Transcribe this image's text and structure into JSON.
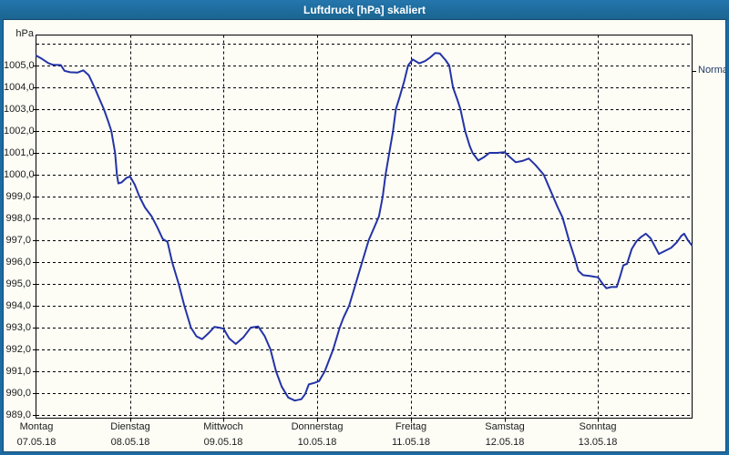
{
  "window": {
    "title": "Luftdruck [hPa] skaliert"
  },
  "colors": {
    "titlebar": "#1d6ba3",
    "window_border": "#1d6ba3",
    "inner_outline": "#16486d",
    "plot_background": "#fdfdf6",
    "grid": "#000000",
    "line": "#2433a6",
    "axis_text": "#1c1c1c",
    "normal_text": "#1f3864"
  },
  "chart_data": {
    "type": "line",
    "title": "Luftdruck [hPa] skaliert",
    "unit_label": "hPa",
    "grid": "dashed",
    "legend_position": "none",
    "y_axis": {
      "min": 989,
      "max": 1006,
      "step": 1,
      "tick_labels": [
        "1005,0",
        "1004,0",
        "1003,0",
        "1002,0",
        "1001,0",
        "1000,0",
        "999,0",
        "998,0",
        "997,0",
        "996,0",
        "995,0",
        "994,0",
        "993,0",
        "992,0",
        "991,0",
        "990,0",
        "989,0"
      ]
    },
    "x_axis": {
      "span_days": 7,
      "days": [
        {
          "name": "Montag",
          "date": "07.05.18"
        },
        {
          "name": "Dienstag",
          "date": "08.05.18"
        },
        {
          "name": "Mittwoch",
          "date": "09.05.18"
        },
        {
          "name": "Donnerstag",
          "date": "10.05.18"
        },
        {
          "name": "Freitag",
          "date": "11.05.18"
        },
        {
          "name": "Samstag",
          "date": "12.05.18"
        },
        {
          "name": "Sonntag",
          "date": "13.05.18"
        }
      ]
    },
    "annotations": [
      {
        "label": "Normal",
        "value_hpa": 1004.75,
        "side": "right"
      }
    ],
    "series": [
      {
        "name": "Luftdruck",
        "unit": "hPa",
        "points_days_hpa": [
          [
            0.0,
            1005.45
          ],
          [
            0.06,
            1005.3
          ],
          [
            0.13,
            1005.1
          ],
          [
            0.18,
            1005.03
          ],
          [
            0.26,
            1005.02
          ],
          [
            0.3,
            1004.76
          ],
          [
            0.36,
            1004.69
          ],
          [
            0.44,
            1004.68
          ],
          [
            0.5,
            1004.78
          ],
          [
            0.56,
            1004.55
          ],
          [
            0.62,
            1004.0
          ],
          [
            0.67,
            1003.5
          ],
          [
            0.72,
            1003.0
          ],
          [
            0.77,
            1002.4
          ],
          [
            0.8,
            1002.0
          ],
          [
            0.84,
            1001.0
          ],
          [
            0.86,
            1000.0
          ],
          [
            0.875,
            999.6
          ],
          [
            0.91,
            999.65
          ],
          [
            0.96,
            999.85
          ],
          [
            1.0,
            999.92
          ],
          [
            1.05,
            999.55
          ],
          [
            1.1,
            999.0
          ],
          [
            1.16,
            998.5
          ],
          [
            1.23,
            998.1
          ],
          [
            1.29,
            997.6
          ],
          [
            1.35,
            997.05
          ],
          [
            1.4,
            996.93
          ],
          [
            1.45,
            996.0
          ],
          [
            1.52,
            995.0
          ],
          [
            1.58,
            994.0
          ],
          [
            1.65,
            993.0
          ],
          [
            1.71,
            992.6
          ],
          [
            1.77,
            992.47
          ],
          [
            1.84,
            992.75
          ],
          [
            1.9,
            993.03
          ],
          [
            1.95,
            993.0
          ],
          [
            2.0,
            992.95
          ],
          [
            2.06,
            992.5
          ],
          [
            2.13,
            992.25
          ],
          [
            2.21,
            992.55
          ],
          [
            2.29,
            993.0
          ],
          [
            2.37,
            993.05
          ],
          [
            2.44,
            992.6
          ],
          [
            2.5,
            992.0
          ],
          [
            2.56,
            991.0
          ],
          [
            2.62,
            990.3
          ],
          [
            2.69,
            989.8
          ],
          [
            2.76,
            989.66
          ],
          [
            2.83,
            989.72
          ],
          [
            2.87,
            989.95
          ],
          [
            2.91,
            990.4
          ],
          [
            2.97,
            990.47
          ],
          [
            3.02,
            990.55
          ],
          [
            3.08,
            991.0
          ],
          [
            3.17,
            992.0
          ],
          [
            3.24,
            993.0
          ],
          [
            3.28,
            993.45
          ],
          [
            3.34,
            994.0
          ],
          [
            3.41,
            995.0
          ],
          [
            3.48,
            996.0
          ],
          [
            3.55,
            997.0
          ],
          [
            3.61,
            997.6
          ],
          [
            3.66,
            998.1
          ],
          [
            3.7,
            999.0
          ],
          [
            3.73,
            1000.0
          ],
          [
            3.77,
            1001.0
          ],
          [
            3.81,
            1002.0
          ],
          [
            3.84,
            1003.0
          ],
          [
            3.88,
            1003.55
          ],
          [
            3.93,
            1004.3
          ],
          [
            3.97,
            1005.0
          ],
          [
            4.02,
            1005.28
          ],
          [
            4.09,
            1005.1
          ],
          [
            4.15,
            1005.2
          ],
          [
            4.21,
            1005.38
          ],
          [
            4.26,
            1005.57
          ],
          [
            4.31,
            1005.55
          ],
          [
            4.37,
            1005.25
          ],
          [
            4.41,
            1005.0
          ],
          [
            4.45,
            1004.0
          ],
          [
            4.5,
            1003.4
          ],
          [
            4.53,
            1003.0
          ],
          [
            4.58,
            1002.0
          ],
          [
            4.63,
            1001.3
          ],
          [
            4.66,
            1001.0
          ],
          [
            4.72,
            1000.65
          ],
          [
            4.78,
            1000.8
          ],
          [
            4.84,
            1001.0
          ],
          [
            4.92,
            1001.0
          ],
          [
            5.0,
            1001.03
          ],
          [
            5.06,
            1000.8
          ],
          [
            5.12,
            1000.57
          ],
          [
            5.19,
            1000.63
          ],
          [
            5.26,
            1000.74
          ],
          [
            5.33,
            1000.45
          ],
          [
            5.42,
            1000.0
          ],
          [
            5.5,
            999.2
          ],
          [
            5.57,
            998.5
          ],
          [
            5.62,
            998.05
          ],
          [
            5.69,
            997.0
          ],
          [
            5.75,
            996.2
          ],
          [
            5.79,
            995.6
          ],
          [
            5.84,
            995.4
          ],
          [
            5.92,
            995.36
          ],
          [
            6.0,
            995.3
          ],
          [
            6.05,
            995.0
          ],
          [
            6.09,
            994.8
          ],
          [
            6.14,
            994.86
          ],
          [
            6.2,
            994.86
          ],
          [
            6.24,
            995.4
          ],
          [
            6.27,
            995.85
          ],
          [
            6.31,
            995.92
          ],
          [
            6.36,
            996.6
          ],
          [
            6.41,
            996.95
          ],
          [
            6.46,
            997.15
          ],
          [
            6.51,
            997.3
          ],
          [
            6.56,
            997.1
          ],
          [
            6.61,
            996.7
          ],
          [
            6.65,
            996.37
          ],
          [
            6.71,
            996.5
          ],
          [
            6.78,
            996.65
          ],
          [
            6.84,
            996.9
          ],
          [
            6.89,
            997.2
          ],
          [
            6.92,
            997.3
          ],
          [
            6.96,
            997.0
          ],
          [
            7.0,
            996.78
          ]
        ]
      }
    ]
  }
}
